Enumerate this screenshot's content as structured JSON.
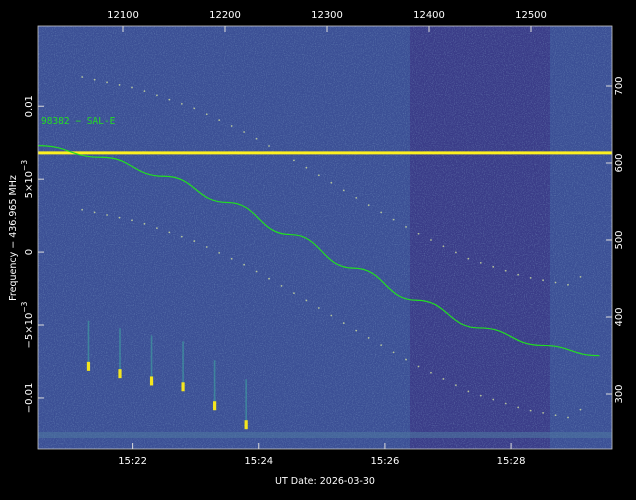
{
  "chart_data": {
    "type": "heatmap",
    "title": "",
    "xlabel": "UT Date: 2026-03-30",
    "ylabel": "Frequency − 436.965 MHz",
    "x_bottom_ticks": [
      "15:22",
      "15:24",
      "15:26",
      "15:28"
    ],
    "x_top_ticks": [
      "12100",
      "12200",
      "12300",
      "12400",
      "12500"
    ],
    "y_left_ticks": [
      {
        "value": 0.01,
        "label": "0.01"
      },
      {
        "value": 0.005,
        "label": "5×10",
        "exp": "−3"
      },
      {
        "value": 0,
        "label": "0"
      },
      {
        "value": -0.005,
        "label": "−5×10",
        "exp": "−3"
      },
      {
        "value": -0.01,
        "label": "−0.01"
      }
    ],
    "y_right_ticks": [
      "700",
      "600",
      "500",
      "400",
      "300"
    ],
    "ylim": [
      -0.0135,
      0.0155
    ],
    "xlim_minutes": [
      "15:20.5",
      "15:29.6"
    ],
    "colormap": {
      "low": "#3b4f95",
      "high": "#f4e61e"
    },
    "annotation": "98382 − SAL-E",
    "annotation_color": "#22dd22",
    "horizontal_line_color": "#fdf020",
    "doppler_curve": {
      "name": "98382 − SAL-E",
      "color": "#22dd22",
      "points": [
        {
          "t": "15:20.5",
          "f": 0.0073
        },
        {
          "t": "15:21.5",
          "f": 0.0065
        },
        {
          "t": "15:22.5",
          "f": 0.0052
        },
        {
          "t": "15:23.5",
          "f": 0.0034
        },
        {
          "t": "15:24.5",
          "f": 0.0012
        },
        {
          "t": "15:25.5",
          "f": -0.0011
        },
        {
          "t": "15:26.5",
          "f": -0.0033
        },
        {
          "t": "15:27.5",
          "f": -0.0052
        },
        {
          "t": "15:28.5",
          "f": -0.0064
        },
        {
          "t": "15:29.4",
          "f": -0.0071
        }
      ]
    },
    "carrier_line_freq": 0.0068,
    "bursts": [
      {
        "t": "15:21.3",
        "f": -0.0078
      },
      {
        "t": "15:21.8",
        "f": -0.0083
      },
      {
        "t": "15:22.3",
        "f": -0.0088
      },
      {
        "t": "15:22.8",
        "f": -0.0092
      },
      {
        "t": "15:23.3",
        "f": -0.0105
      },
      {
        "t": "15:23.8",
        "f": -0.0118
      }
    ]
  }
}
